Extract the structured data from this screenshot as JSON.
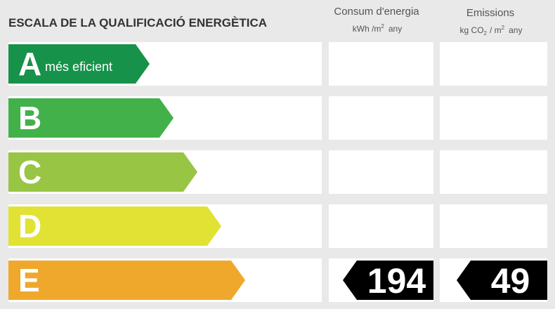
{
  "header": {
    "title": "ESCALA DE LA QUALIFICACIÓ ENERGÈTICA"
  },
  "columns": [
    {
      "title": "Consum d'energia",
      "unit": "kWh /m",
      "unit_sup": "2",
      "unit_end": "any"
    },
    {
      "title": "Emissions",
      "unit": "kg CO",
      "unit_sub": "2",
      "unit_mid": "/ m",
      "unit_sup": "2",
      "unit_end": "any"
    }
  ],
  "rows": [
    {
      "letter": "A",
      "label": "més eficient",
      "color": "#17924a"
    },
    {
      "letter": "B",
      "color": "#42b14a"
    },
    {
      "letter": "C",
      "color": "#98c543"
    },
    {
      "letter": "D",
      "color": "#e1e234"
    },
    {
      "letter": "E",
      "color": "#efa82b",
      "energy": "194",
      "emissions": "49"
    }
  ]
}
